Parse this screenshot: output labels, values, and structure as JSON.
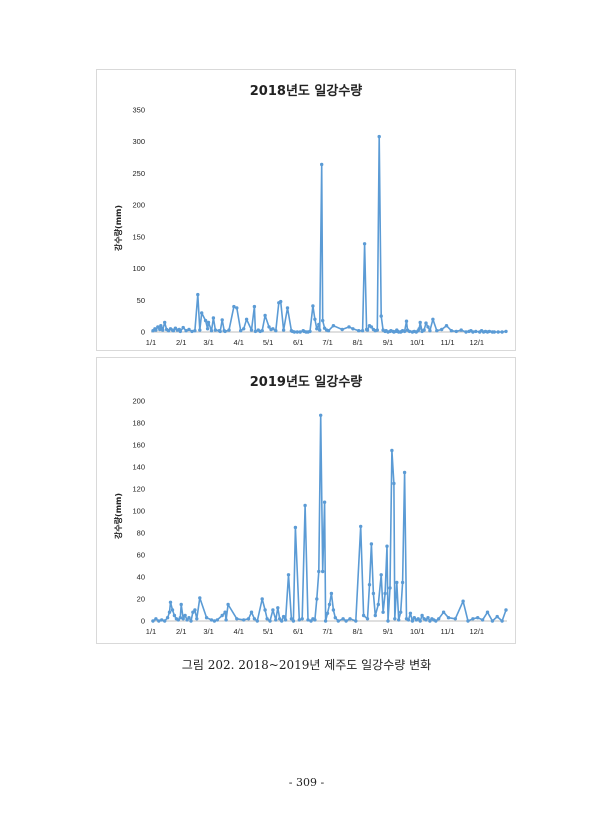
{
  "caption": "그림 202. 2018~2019년 제주도 일강수량 변화",
  "page_number": "- 309 -",
  "colors": {
    "series": "#5b9bd5",
    "axis": "#bfbfbf"
  },
  "chart_data": [
    {
      "type": "line",
      "title": "2018년도 일강수량",
      "ylabel": "강수량(mm)",
      "xlabel": "",
      "ylim": [
        0,
        350
      ],
      "yticks": [
        0,
        50,
        100,
        150,
        200,
        250,
        300,
        350
      ],
      "xlim": [
        0,
        365
      ],
      "xticks": [
        {
          "label": "1/1",
          "day": 0
        },
        {
          "label": "2/1",
          "day": 31
        },
        {
          "label": "3/1",
          "day": 59
        },
        {
          "label": "4/1",
          "day": 90
        },
        {
          "label": "5/1",
          "day": 120
        },
        {
          "label": "6/1",
          "day": 151
        },
        {
          "label": "7/1",
          "day": 181
        },
        {
          "label": "8/1",
          "day": 212
        },
        {
          "label": "9/1",
          "day": 243
        },
        {
          "label": "10/1",
          "day": 273
        },
        {
          "label": "11/1",
          "day": 304
        },
        {
          "label": "12/1",
          "day": 334
        }
      ],
      "grid": false,
      "series": [
        {
          "x": [
            2,
            4,
            5,
            7,
            9,
            10,
            11,
            12,
            14,
            16,
            18,
            20,
            22,
            23,
            25,
            27,
            29,
            30,
            33,
            36,
            39,
            42,
            45,
            48,
            50,
            52,
            56,
            58,
            59,
            62,
            64,
            66,
            70,
            71,
            73,
            75,
            76,
            80,
            85,
            88,
            92,
            95,
            98,
            103,
            106,
            107,
            110,
            112,
            114,
            117,
            121,
            123,
            125,
            128,
            131,
            133,
            136,
            140,
            144,
            145,
            147,
            150,
            153,
            156,
            157,
            159,
            161,
            163,
            166,
            168,
            170,
            172,
            173,
            175,
            176,
            178,
            180,
            182,
            187,
            196,
            203,
            207,
            213,
            217,
            219,
            221,
            222,
            224,
            226,
            228,
            230,
            232,
            234,
            236,
            238,
            240,
            241,
            243,
            245,
            246,
            248,
            249,
            251,
            252,
            253,
            254,
            256,
            257,
            258,
            260,
            262,
            263,
            265,
            268,
            270,
            272,
            274,
            275,
            276,
            278,
            280,
            282,
            284,
            286,
            289,
            293,
            298,
            303,
            308,
            313,
            318,
            323,
            326,
            328,
            330,
            333,
            337,
            339,
            341,
            343,
            345,
            347,
            350,
            352,
            356,
            360,
            364
          ],
          "y": [
            2,
            5,
            3,
            8,
            4,
            10,
            6,
            3,
            15,
            4,
            2,
            5,
            3,
            2,
            6,
            3,
            4,
            1,
            7,
            2,
            4,
            1,
            2,
            59,
            3,
            30,
            18,
            5,
            15,
            2,
            22,
            3,
            2,
            1,
            19,
            2,
            1,
            3,
            40,
            38,
            2,
            5,
            20,
            3,
            40,
            1,
            3,
            1,
            2,
            26,
            8,
            4,
            5,
            2,
            46,
            48,
            3,
            38,
            2,
            1,
            0,
            0,
            0,
            2,
            1,
            0,
            0,
            1,
            41,
            20,
            5,
            12,
            3,
            264,
            18,
            6,
            3,
            2,
            10,
            4,
            8,
            5,
            2,
            2,
            139,
            4,
            3,
            10,
            8,
            4,
            2,
            3,
            308,
            25,
            3,
            1,
            2,
            0,
            1,
            2,
            1,
            0,
            1,
            3,
            1,
            0,
            0,
            1,
            2,
            1,
            17,
            3,
            1,
            0,
            1,
            0,
            2,
            5,
            15,
            1,
            3,
            14,
            8,
            2,
            20,
            2,
            4,
            10,
            2,
            1,
            3,
            0,
            1,
            2,
            0,
            1,
            0,
            2,
            0,
            1,
            0,
            1,
            0,
            0,
            0,
            0,
            1
          ]
        }
      ]
    },
    {
      "type": "line",
      "title": "2019년도 일강수량",
      "ylabel": "강수량(mm)",
      "xlabel": "",
      "ylim": [
        0,
        200
      ],
      "yticks": [
        0,
        20,
        40,
        60,
        80,
        100,
        120,
        140,
        160,
        180,
        200
      ],
      "xlim": [
        0,
        365
      ],
      "xticks": [
        {
          "label": "1/1",
          "day": 0
        },
        {
          "label": "2/1",
          "day": 31
        },
        {
          "label": "3/1",
          "day": 59
        },
        {
          "label": "4/1",
          "day": 90
        },
        {
          "label": "5/1",
          "day": 120
        },
        {
          "label": "6/1",
          "day": 151
        },
        {
          "label": "7/1",
          "day": 181
        },
        {
          "label": "8/1",
          "day": 212
        },
        {
          "label": "9/1",
          "day": 243
        },
        {
          "label": "10/1",
          "day": 273
        },
        {
          "label": "11/1",
          "day": 304
        },
        {
          "label": "12/1",
          "day": 334
        }
      ],
      "grid": false,
      "series": [
        {
          "x": [
            2,
            5,
            8,
            11,
            14,
            17,
            19,
            20,
            22,
            24,
            26,
            28,
            30,
            31,
            33,
            35,
            37,
            39,
            41,
            43,
            45,
            47,
            50,
            57,
            62,
            65,
            68,
            73,
            76,
            77,
            79,
            88,
            95,
            100,
            103,
            106,
            109,
            114,
            117,
            119,
            122,
            125,
            128,
            130,
            132,
            134,
            136,
            138,
            141,
            144,
            146,
            148,
            152,
            155,
            158,
            161,
            164,
            166,
            168,
            170,
            172,
            174,
            176,
            178,
            179,
            181,
            183,
            185,
            187,
            189,
            192,
            197,
            200,
            204,
            210,
            215,
            218,
            222,
            224,
            226,
            228,
            230,
            233,
            236,
            238,
            240,
            242,
            243,
            245,
            247,
            249,
            250,
            252,
            254,
            256,
            258,
            260,
            262,
            264,
            266,
            268,
            270,
            272,
            274,
            276,
            278,
            280,
            282,
            284,
            286,
            288,
            290,
            292,
            295,
            300,
            305,
            312,
            320,
            325,
            330,
            335,
            340,
            345,
            350,
            355,
            360,
            364
          ],
          "y": [
            0,
            2,
            0,
            1,
            0,
            3,
            8,
            17,
            10,
            5,
            2,
            1,
            3,
            15,
            2,
            5,
            1,
            3,
            0,
            8,
            10,
            2,
            21,
            3,
            1,
            0,
            1,
            5,
            8,
            1,
            15,
            2,
            1,
            2,
            8,
            2,
            0,
            20,
            10,
            2,
            0,
            10,
            1,
            12,
            2,
            0,
            4,
            1,
            42,
            2,
            0,
            85,
            1,
            2,
            105,
            1,
            0,
            2,
            1,
            20,
            45,
            187,
            45,
            108,
            0,
            7,
            15,
            25,
            10,
            3,
            0,
            2,
            0,
            2,
            0,
            86,
            5,
            2,
            33,
            70,
            25,
            5,
            15,
            42,
            8,
            25,
            68,
            0,
            30,
            155,
            125,
            2,
            35,
            1,
            8,
            35,
            135,
            2,
            1,
            7,
            0,
            3,
            1,
            2,
            0,
            5,
            2,
            1,
            3,
            0,
            2,
            1,
            0,
            2,
            8,
            3,
            2,
            18,
            0,
            2,
            3,
            1,
            8,
            0,
            4,
            0,
            10
          ]
        }
      ]
    }
  ]
}
